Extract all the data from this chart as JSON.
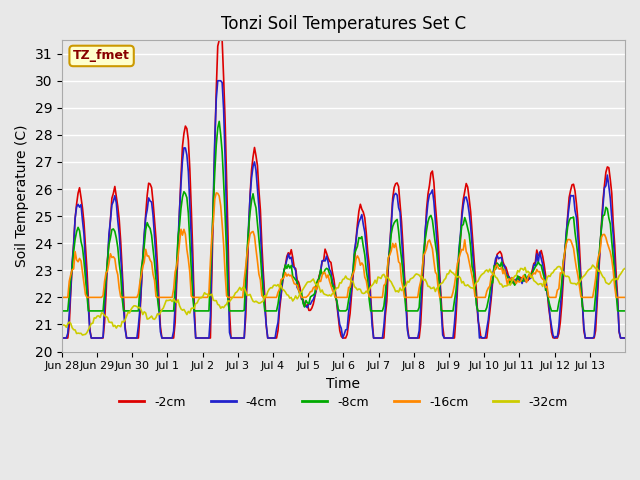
{
  "title": "Tonzi Soil Temperatures Set C",
  "xlabel": "Time",
  "ylabel": "Soil Temperature (C)",
  "ylim": [
    20.0,
    31.5
  ],
  "yticks": [
    20.0,
    21.0,
    22.0,
    23.0,
    24.0,
    25.0,
    26.0,
    27.0,
    28.0,
    29.0,
    30.0,
    31.0
  ],
  "background_color": "#e8e8e8",
  "plot_bg_color": "#e8e8e8",
  "legend_label": "TZ_fmet",
  "legend_bg": "#ffffcc",
  "legend_edge": "#cc9900",
  "series_colors": {
    "-2cm": "#dd0000",
    "-4cm": "#2222cc",
    "-8cm": "#00aa00",
    "-16cm": "#ff8800",
    "-32cm": "#cccc00"
  },
  "series_labels": [
    "-2cm",
    "-4cm",
    "-8cm",
    "-16cm",
    "-32cm"
  ],
  "xtick_labels": [
    "Jun 28",
    "Jun 29",
    "Jun 30",
    "Jul 1",
    "Jul 2",
    "Jul 3",
    "Jul 4",
    "Jul 5",
    "Jul 6",
    "Jul 7",
    "Jul 8",
    "Jul 9",
    "Jul 10",
    "Jul 11",
    "Jul 12",
    "Jul 13"
  ],
  "num_points": 384
}
